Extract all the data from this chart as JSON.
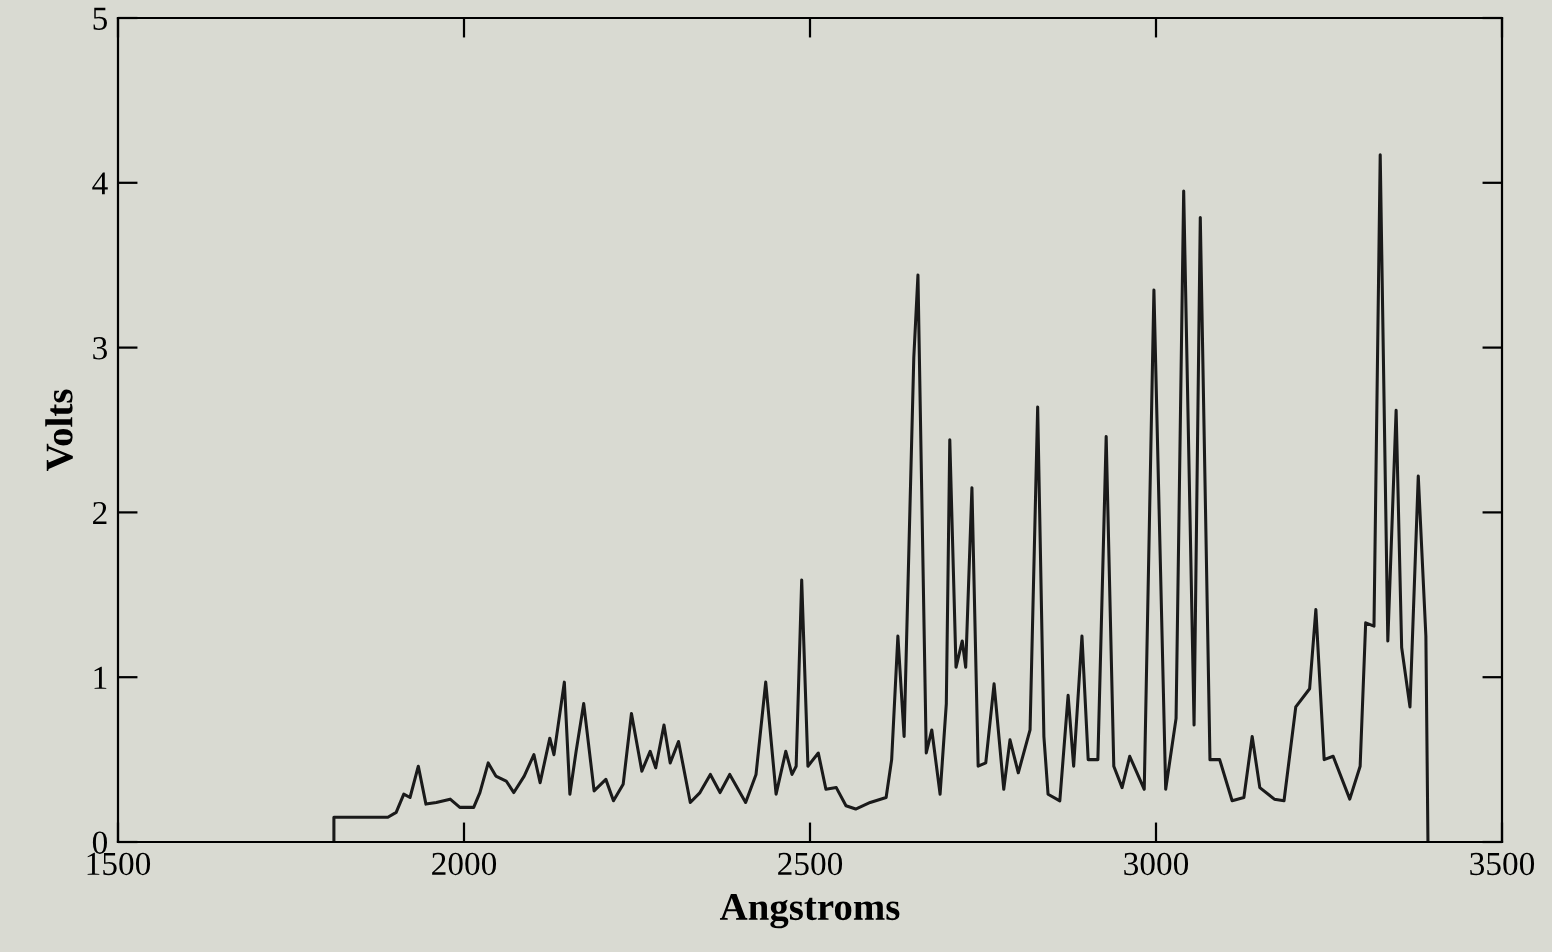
{
  "chart_data": {
    "type": "line",
    "xlabel": "Angstroms",
    "ylabel": "Volts",
    "xlim": [
      1500,
      3500
    ],
    "ylim": [
      0,
      5
    ],
    "xticks": [
      1500,
      2000,
      2500,
      3000,
      3500
    ],
    "yticks": [
      {
        "value": 0,
        "label": "0"
      },
      1,
      2,
      3,
      4,
      5
    ],
    "grid": false,
    "series": [
      {
        "color": "#1a1a1a",
        "x": [
          1812,
          1812,
          1890,
          1902,
          1913,
          1922,
          1934,
          1945,
          1960,
          1980,
          1994,
          2014,
          2023,
          2035,
          2046,
          2061,
          2072,
          2087,
          2101,
          2110,
          2124,
          2130,
          2145,
          2153,
          2162,
          2173,
          2188,
          2205,
          2216,
          2230,
          2242,
          2257,
          2269,
          2277,
          2289,
          2298,
          2310,
          2327,
          2341,
          2356,
          2370,
          2384,
          2407,
          2422,
          2436,
          2451,
          2465,
          2474,
          2480,
          2488,
          2497,
          2512,
          2523,
          2538,
          2552,
          2566,
          2587,
          2610,
          2618,
          2627,
          2636,
          2650,
          2656,
          2668,
          2676,
          2688,
          2697,
          2702,
          2711,
          2720,
          2725,
          2734,
          2743,
          2754,
          2766,
          2780,
          2789,
          2801,
          2818,
          2829,
          2838,
          2844,
          2861,
          2873,
          2881,
          2893,
          2902,
          2916,
          2928,
          2939,
          2951,
          2962,
          2983,
          2997,
          3014,
          3029,
          3040,
          3055,
          3064,
          3078,
          3092,
          3110,
          3127,
          3139,
          3150,
          3171,
          3185,
          3202,
          3222,
          3231,
          3243,
          3256,
          3280,
          3295,
          3303,
          3315,
          3324,
          3335,
          3347,
          3355,
          3367,
          3379,
          3390,
          3393
        ],
        "values": [
          0,
          0.15,
          0.15,
          0.18,
          0.29,
          0.27,
          0.46,
          0.23,
          0.24,
          0.26,
          0.21,
          0.21,
          0.3,
          0.48,
          0.4,
          0.37,
          0.3,
          0.4,
          0.53,
          0.36,
          0.63,
          0.53,
          0.97,
          0.29,
          0.55,
          0.84,
          0.31,
          0.38,
          0.25,
          0.35,
          0.78,
          0.43,
          0.55,
          0.45,
          0.71,
          0.48,
          0.61,
          0.24,
          0.3,
          0.41,
          0.3,
          0.41,
          0.24,
          0.41,
          0.97,
          0.29,
          0.55,
          0.41,
          0.46,
          1.59,
          0.46,
          0.54,
          0.32,
          0.33,
          0.22,
          0.2,
          0.24,
          0.27,
          0.5,
          1.25,
          0.64,
          2.94,
          3.44,
          0.54,
          0.68,
          0.29,
          0.84,
          2.44,
          1.06,
          1.22,
          1.06,
          2.15,
          0.46,
          0.48,
          0.96,
          0.32,
          0.62,
          0.42,
          0.68,
          2.64,
          0.64,
          0.29,
          0.25,
          0.89,
          0.46,
          1.25,
          0.5,
          0.5,
          2.46,
          0.46,
          0.33,
          0.52,
          0.32,
          3.35,
          0.32,
          0.75,
          3.95,
          0.71,
          3.79,
          0.5,
          0.5,
          0.25,
          0.27,
          0.64,
          0.33,
          0.26,
          0.25,
          0.82,
          0.93,
          1.41,
          0.5,
          0.52,
          0.26,
          0.46,
          1.33,
          1.31,
          4.17,
          1.22,
          2.62,
          1.18,
          0.82,
          2.22,
          1.25,
          0
        ]
      }
    ]
  }
}
